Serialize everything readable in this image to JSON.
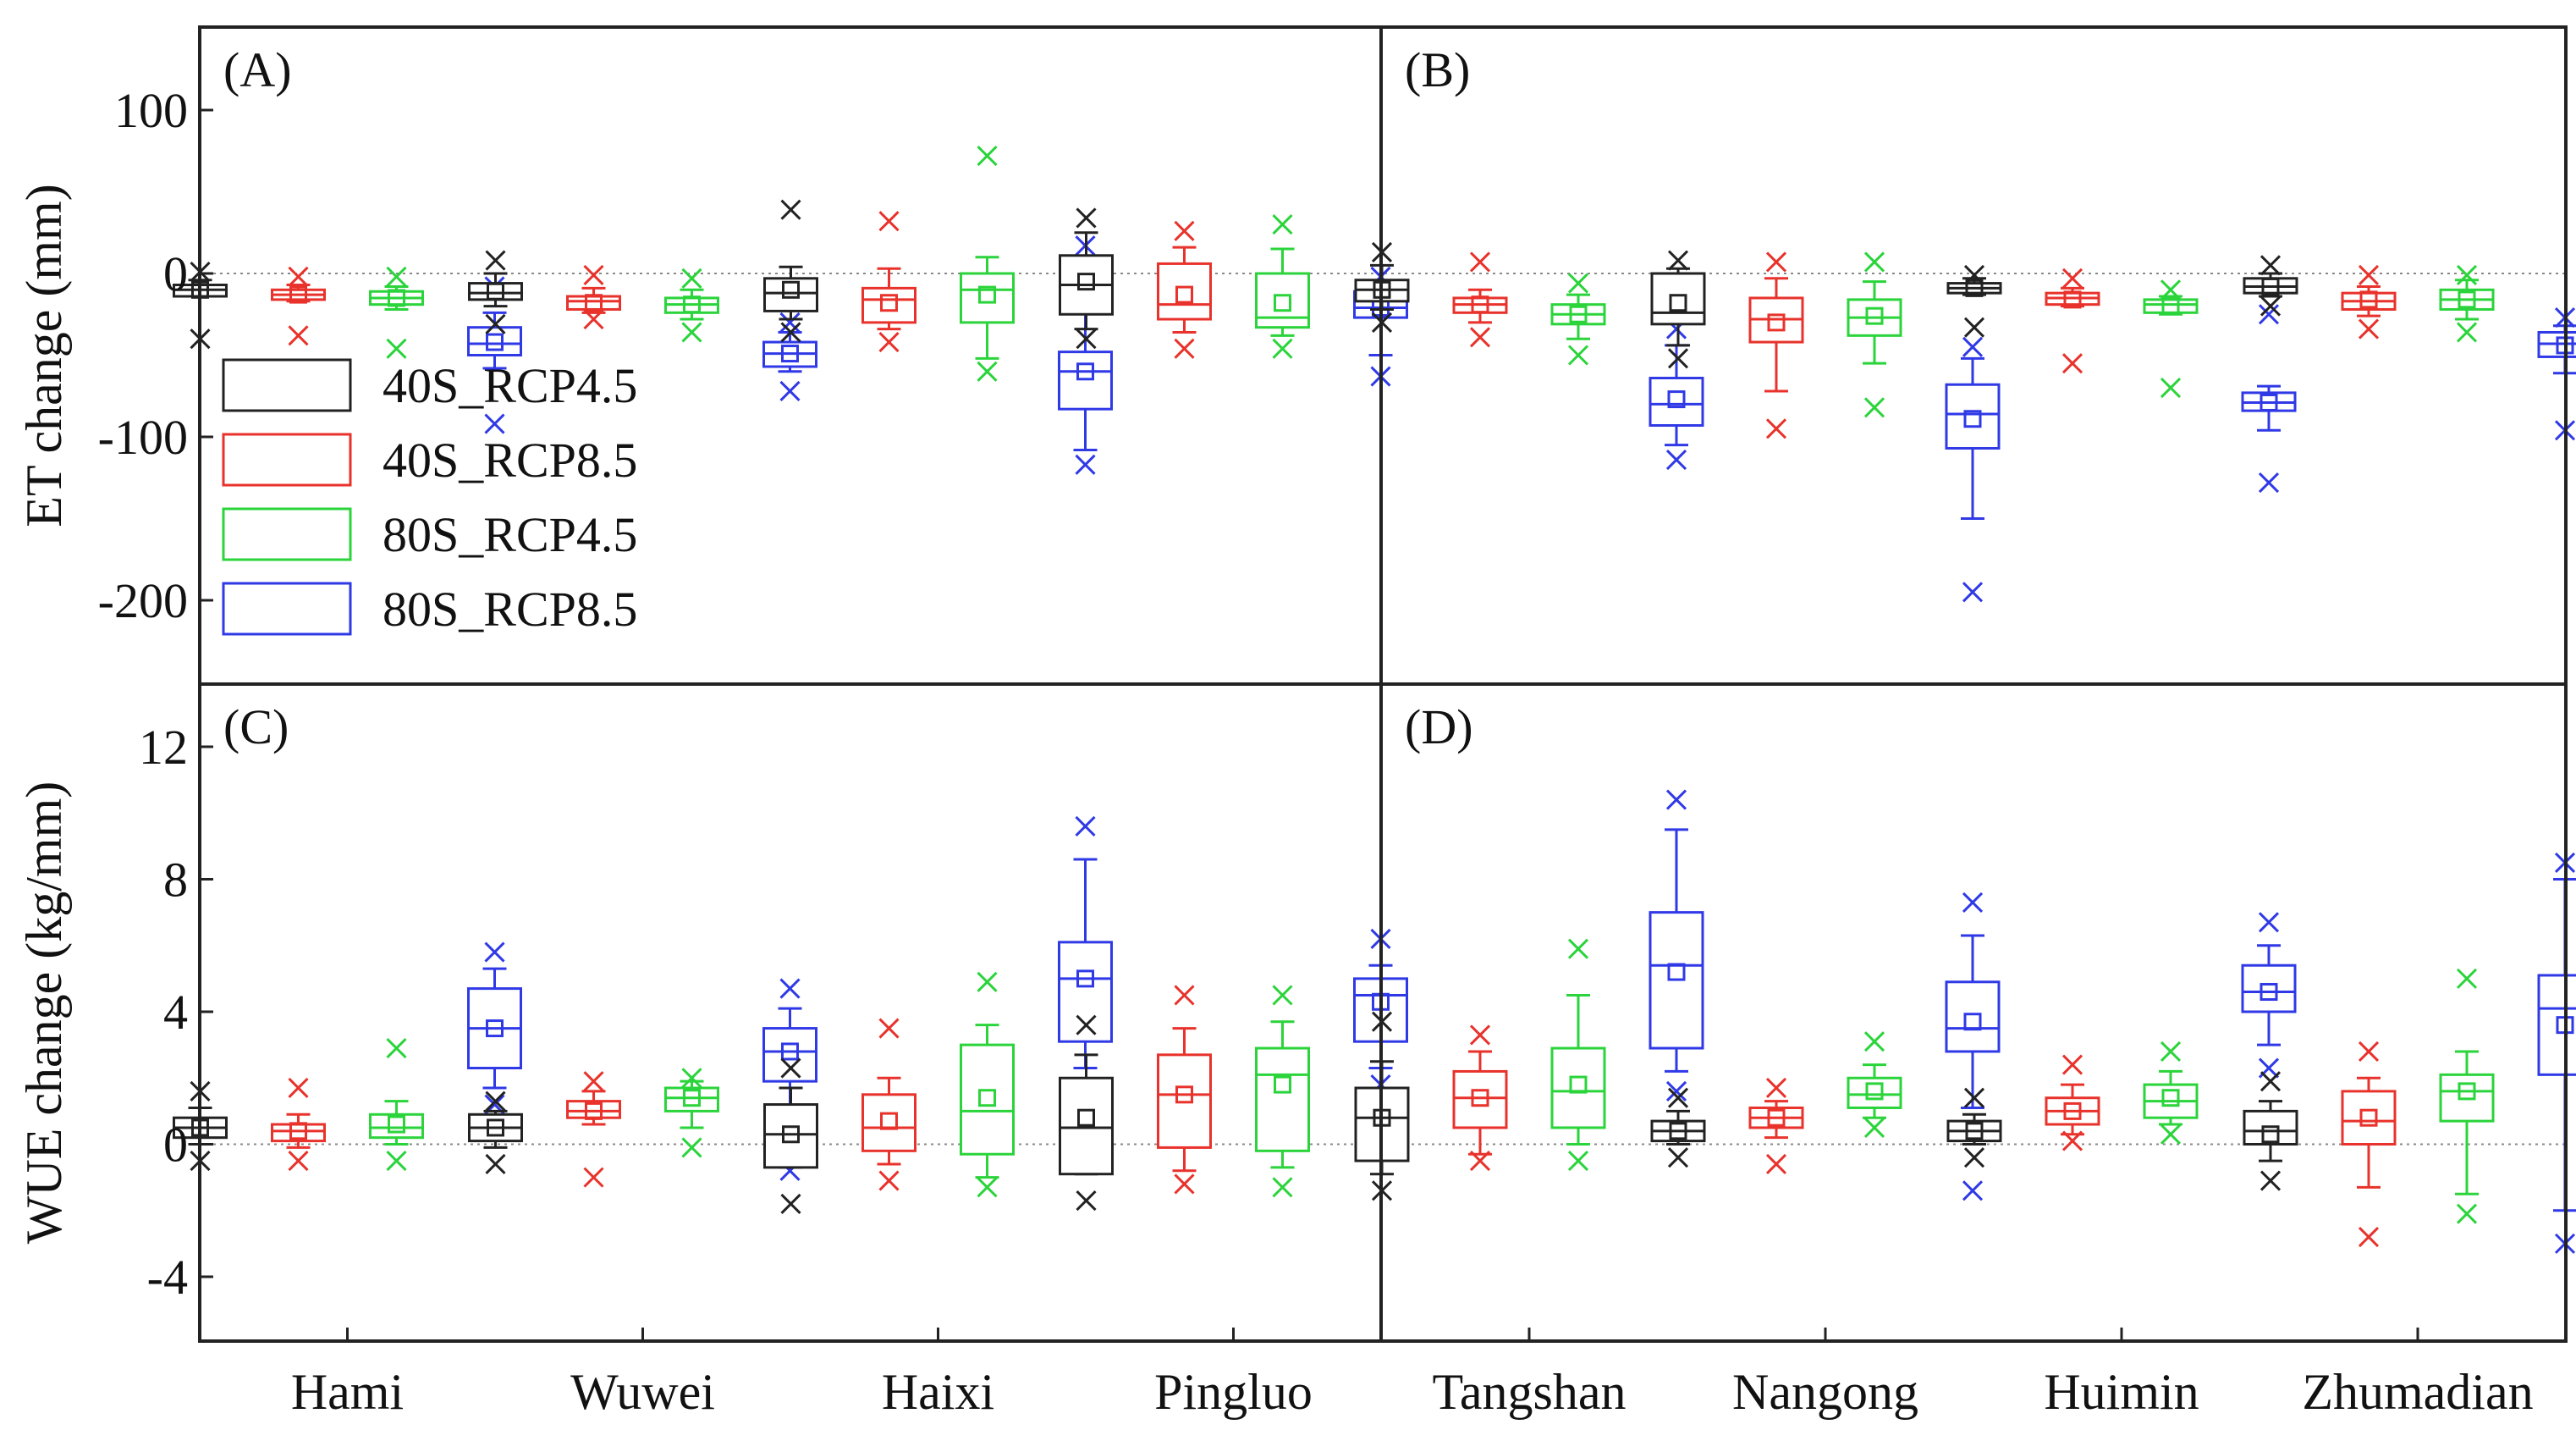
{
  "chart_data": {
    "type": "boxplot",
    "legend": {
      "position": "inside-left of panel A",
      "entries": [
        {
          "name": "40S_RCP4.5",
          "color": "#222222"
        },
        {
          "name": "40S_RCP8.5",
          "color": "#e8322b"
        },
        {
          "name": "80S_RCP4.5",
          "color": "#2ad43a"
        },
        {
          "name": "80S_RCP8.5",
          "color": "#2f39e6"
        }
      ]
    },
    "rows": [
      {
        "ylabel": "ET change (mm)",
        "ylim": [
          -250,
          150
        ],
        "ticks": [
          100,
          0,
          -100,
          -200
        ]
      },
      {
        "ylabel": "WUE change (kg/mm)",
        "ylim": [
          -6,
          14
        ],
        "ticks": [
          12,
          8,
          4,
          0,
          -4
        ]
      }
    ],
    "panels": [
      {
        "label": "(A)",
        "row": 0,
        "col": 0,
        "categories": [
          "Hami",
          "Wuwei",
          "Haixi",
          "Pingluo"
        ],
        "boxes": [
          [
            {
              "min": -14,
              "q1": -14,
              "med": -10,
              "q3": -7,
              "max": -4,
              "mean": -10,
              "o_lo": -40,
              "o_hi": 1
            },
            {
              "min": -17,
              "q1": -16,
              "med": -13,
              "q3": -10,
              "max": -7,
              "mean": -13,
              "o_lo": -38,
              "o_hi": -2
            },
            {
              "min": -22,
              "q1": -19,
              "med": -15,
              "q3": -11,
              "max": -8,
              "mean": -15,
              "o_lo": -46,
              "o_hi": -2
            },
            {
              "min": -58,
              "q1": -50,
              "med": -43,
              "q3": -33,
              "max": -24,
              "mean": -42,
              "o_lo": -92,
              "o_hi": -8
            }
          ],
          [
            {
              "min": -20,
              "q1": -16,
              "med": -12,
              "q3": -6,
              "max": 0,
              "mean": -11,
              "o_lo": -31,
              "o_hi": 8
            },
            {
              "min": -24,
              "q1": -22,
              "med": -17,
              "q3": -14,
              "max": -9,
              "mean": -18,
              "o_lo": -28,
              "o_hi": -1
            },
            {
              "min": -28,
              "q1": -24,
              "med": -19,
              "q3": -15,
              "max": -10,
              "mean": -19,
              "o_lo": -36,
              "o_hi": -3
            },
            {
              "min": -60,
              "q1": -57,
              "med": -49,
              "q3": -42,
              "max": -36,
              "mean": -49,
              "o_lo": -72,
              "o_hi": -30
            }
          ],
          [
            {
              "min": -28,
              "q1": -23,
              "med": -12,
              "q3": -3,
              "max": 4,
              "mean": -10,
              "o_lo": -36,
              "o_hi": 39
            },
            {
              "min": -34,
              "q1": -30,
              "med": -16,
              "q3": -9,
              "max": 3,
              "mean": -18,
              "o_lo": -42,
              "o_hi": 32
            },
            {
              "min": -52,
              "q1": -30,
              "med": -10,
              "q3": 0,
              "max": 10,
              "mean": -13,
              "o_lo": -60,
              "o_hi": 72
            },
            {
              "min": -108,
              "q1": -83,
              "med": -60,
              "q3": -48,
              "max": -5,
              "mean": -60,
              "o_lo": -117,
              "o_hi": 17
            }
          ],
          [
            {
              "min": -34,
              "q1": -25,
              "med": -7,
              "q3": 11,
              "max": 25,
              "mean": -5,
              "o_lo": -40,
              "o_hi": 34
            },
            {
              "min": -36,
              "q1": -28,
              "med": -19,
              "q3": 6,
              "max": 16,
              "mean": -13,
              "o_lo": -46,
              "o_hi": 26
            },
            {
              "min": -38,
              "q1": -33,
              "med": -27,
              "q3": 0,
              "max": 15,
              "mean": -18,
              "o_lo": -46,
              "o_hi": 30
            },
            {
              "min": -50,
              "q1": -27,
              "med": -21,
              "q3": -11,
              "max": -5,
              "mean": -21,
              "o_lo": -63,
              "o_hi": -2
            }
          ]
        ]
      },
      {
        "label": "(B)",
        "row": 0,
        "col": 1,
        "categories": [
          "Tangshan",
          "Nangong",
          "Huimin",
          "Zhumadian"
        ],
        "boxes": [
          [
            {
              "min": -22,
              "q1": -17,
              "med": -10,
              "q3": -4,
              "max": 5,
              "mean": -10,
              "o_lo": -30,
              "o_hi": 13
            },
            {
              "min": -30,
              "q1": -24,
              "med": -19,
              "q3": -15,
              "max": -10,
              "mean": -19,
              "o_lo": -39,
              "o_hi": 7
            },
            {
              "min": -40,
              "q1": -31,
              "med": -25,
              "q3": -19,
              "max": -13,
              "mean": -25,
              "o_lo": -50,
              "o_hi": -6
            },
            {
              "min": -105,
              "q1": -93,
              "med": -80,
              "q3": -64,
              "max": -44,
              "mean": -77,
              "o_lo": -114,
              "o_hi": -34
            }
          ],
          [
            {
              "min": -44,
              "q1": -31,
              "med": -24,
              "q3": 0,
              "max": 3,
              "mean": -18,
              "o_lo": -52,
              "o_hi": 8
            },
            {
              "min": -72,
              "q1": -42,
              "med": -28,
              "q3": -15,
              "max": -3,
              "mean": -30,
              "o_lo": -95,
              "o_hi": 7
            },
            {
              "min": -55,
              "q1": -38,
              "med": -27,
              "q3": -16,
              "max": -5,
              "mean": -26,
              "o_lo": -82,
              "o_hi": 7
            },
            {
              "min": -150,
              "q1": -107,
              "med": -86,
              "q3": -68,
              "max": -52,
              "mean": -89,
              "o_lo": -195,
              "o_hi": -45
            }
          ],
          [
            {
              "min": -13,
              "q1": -12,
              "med": -9,
              "q3": -6,
              "max": -3,
              "mean": -9,
              "o_lo": -33,
              "o_hi": -1
            },
            {
              "min": -20,
              "q1": -19,
              "med": -15,
              "q3": -12,
              "max": -9,
              "mean": -16,
              "o_lo": -55,
              "o_hi": -3
            },
            {
              "min": -25,
              "q1": -24,
              "med": -19,
              "q3": -16,
              "max": -14,
              "mean": -20,
              "o_lo": -70,
              "o_hi": -10
            },
            {
              "min": -96,
              "q1": -84,
              "med": -79,
              "q3": -73,
              "max": -69,
              "mean": -79,
              "o_lo": -128,
              "o_hi": -25
            }
          ],
          [
            {
              "min": -14,
              "q1": -12,
              "med": -8,
              "q3": -3,
              "max": 0,
              "mean": -8,
              "o_lo": -20,
              "o_hi": 5
            },
            {
              "min": -26,
              "q1": -22,
              "med": -17,
              "q3": -12,
              "max": -8,
              "mean": -16,
              "o_lo": -34,
              "o_hi": -1
            },
            {
              "min": -28,
              "q1": -22,
              "med": -16,
              "q3": -10,
              "max": -4,
              "mean": -16,
              "o_lo": -36,
              "o_hi": -1
            },
            {
              "min": -61,
              "q1": -51,
              "med": -43,
              "q3": -36,
              "max": -32,
              "mean": -44,
              "o_lo": -96,
              "o_hi": -27
            }
          ]
        ]
      },
      {
        "label": "(C)",
        "row": 1,
        "col": 0,
        "categories": [
          "Hami",
          "Wuwei",
          "Haixi",
          "Pingluo"
        ],
        "boxes": [
          [
            {
              "min": 0.0,
              "q1": 0.2,
              "med": 0.5,
              "q3": 0.8,
              "max": 1.1,
              "mean": 0.5,
              "o_lo": -0.5,
              "o_hi": 1.6
            },
            {
              "min": -0.1,
              "q1": 0.1,
              "med": 0.4,
              "q3": 0.6,
              "max": 0.9,
              "mean": 0.4,
              "o_lo": -0.5,
              "o_hi": 1.7
            },
            {
              "min": 0.0,
              "q1": 0.2,
              "med": 0.5,
              "q3": 0.9,
              "max": 1.3,
              "mean": 0.6,
              "o_lo": -0.5,
              "o_hi": 2.9
            },
            {
              "min": 1.7,
              "q1": 2.3,
              "med": 3.5,
              "q3": 4.7,
              "max": 5.3,
              "mean": 3.5,
              "o_lo": 1.2,
              "o_hi": 5.8
            }
          ],
          [
            {
              "min": -0.1,
              "q1": 0.1,
              "med": 0.5,
              "q3": 0.9,
              "max": 1.0,
              "mean": 0.5,
              "o_lo": -0.6,
              "o_hi": 1.3
            },
            {
              "min": 0.6,
              "q1": 0.8,
              "med": 1.0,
              "q3": 1.3,
              "max": 1.6,
              "mean": 1.0,
              "o_lo": -1.0,
              "o_hi": 1.9
            },
            {
              "min": 0.5,
              "q1": 1.0,
              "med": 1.4,
              "q3": 1.7,
              "max": 1.9,
              "mean": 1.4,
              "o_lo": -0.1,
              "o_hi": 2.0
            },
            {
              "min": 1.0,
              "q1": 1.9,
              "med": 2.8,
              "q3": 3.5,
              "max": 4.1,
              "mean": 2.8,
              "o_lo": -0.8,
              "o_hi": 4.7
            }
          ],
          [
            {
              "min": -0.7,
              "q1": -0.7,
              "med": 0.3,
              "q3": 1.2,
              "max": 1.7,
              "mean": 0.3,
              "o_lo": -1.8,
              "o_hi": 2.3
            },
            {
              "min": -0.6,
              "q1": -0.2,
              "med": 0.5,
              "q3": 1.5,
              "max": 2.0,
              "mean": 0.7,
              "o_lo": -1.1,
              "o_hi": 3.5
            },
            {
              "min": -1.0,
              "q1": -0.3,
              "med": 1.0,
              "q3": 3.0,
              "max": 3.6,
              "mean": 1.4,
              "o_lo": -1.3,
              "o_hi": 4.9
            },
            {
              "min": 2.3,
              "q1": 3.1,
              "med": 5.0,
              "q3": 6.1,
              "max": 8.6,
              "mean": 5.0,
              "o_lo": 1.2,
              "o_hi": 9.6
            }
          ],
          [
            {
              "min": -0.9,
              "q1": -0.9,
              "med": 0.5,
              "q3": 2.0,
              "max": 2.7,
              "mean": 0.8,
              "o_lo": -1.7,
              "o_hi": 3.6
            },
            {
              "min": -0.8,
              "q1": -0.1,
              "med": 1.5,
              "q3": 2.7,
              "max": 3.5,
              "mean": 1.5,
              "o_lo": -1.2,
              "o_hi": 4.5
            },
            {
              "min": -0.7,
              "q1": -0.2,
              "med": 2.1,
              "q3": 2.9,
              "max": 3.7,
              "mean": 1.8,
              "o_lo": -1.3,
              "o_hi": 4.5
            },
            {
              "min": 2.3,
              "q1": 3.1,
              "med": 4.5,
              "q3": 5.0,
              "max": 5.4,
              "mean": 4.3,
              "o_lo": 1.8,
              "o_hi": 6.2
            }
          ]
        ]
      },
      {
        "label": "(D)",
        "row": 1,
        "col": 1,
        "categories": [
          "Tangshan",
          "Nangong",
          "Huimin",
          "Zhumadian"
        ],
        "boxes": [
          [
            {
              "min": -0.9,
              "q1": -0.5,
              "med": 0.8,
              "q3": 1.7,
              "max": 2.5,
              "mean": 0.8,
              "o_lo": -1.4,
              "o_hi": 3.7
            },
            {
              "min": -0.3,
              "q1": 0.5,
              "med": 1.4,
              "q3": 2.2,
              "max": 2.8,
              "mean": 1.4,
              "o_lo": -0.5,
              "o_hi": 3.3
            },
            {
              "min": 0.0,
              "q1": 0.5,
              "med": 1.6,
              "q3": 2.9,
              "max": 4.5,
              "mean": 1.8,
              "o_lo": -0.5,
              "o_hi": 5.9
            },
            {
              "min": 2.2,
              "q1": 2.9,
              "med": 5.4,
              "q3": 7.0,
              "max": 9.5,
              "mean": 5.2,
              "o_lo": 1.6,
              "o_hi": 10.4
            }
          ],
          [
            {
              "min": 0.0,
              "q1": 0.1,
              "med": 0.4,
              "q3": 0.7,
              "max": 1.0,
              "mean": 0.4,
              "o_lo": -0.4,
              "o_hi": 1.4
            },
            {
              "min": 0.2,
              "q1": 0.5,
              "med": 0.8,
              "q3": 1.1,
              "max": 1.3,
              "mean": 0.8,
              "o_lo": -0.6,
              "o_hi": 1.7
            },
            {
              "min": 0.8,
              "q1": 1.1,
              "med": 1.5,
              "q3": 2.0,
              "max": 2.4,
              "mean": 1.6,
              "o_lo": 0.5,
              "o_hi": 3.1
            },
            {
              "min": 1.1,
              "q1": 2.8,
              "med": 3.5,
              "q3": 4.9,
              "max": 6.3,
              "mean": 3.7,
              "o_lo": -1.4,
              "o_hi": 7.3
            }
          ],
          [
            {
              "min": 0.0,
              "q1": 0.1,
              "med": 0.4,
              "q3": 0.7,
              "max": 0.9,
              "mean": 0.4,
              "o_lo": -0.4,
              "o_hi": 1.4
            },
            {
              "min": 0.3,
              "q1": 0.6,
              "med": 1.0,
              "q3": 1.4,
              "max": 1.8,
              "mean": 1.0,
              "o_lo": 0.1,
              "o_hi": 2.4
            },
            {
              "min": 0.6,
              "q1": 0.8,
              "med": 1.3,
              "q3": 1.8,
              "max": 2.2,
              "mean": 1.4,
              "o_lo": 0.3,
              "o_hi": 2.8
            },
            {
              "min": 3.0,
              "q1": 4.0,
              "med": 4.6,
              "q3": 5.4,
              "max": 6.0,
              "mean": 4.6,
              "o_lo": 2.3,
              "o_hi": 6.7
            }
          ],
          [
            {
              "min": -0.5,
              "q1": 0.0,
              "med": 0.4,
              "q3": 1.0,
              "max": 1.3,
              "mean": 0.3,
              "o_lo": -1.1,
              "o_hi": 1.9
            },
            {
              "min": -1.3,
              "q1": 0.0,
              "med": 0.7,
              "q3": 1.6,
              "max": 2.0,
              "mean": 0.8,
              "o_lo": -2.8,
              "o_hi": 2.8
            },
            {
              "min": -1.5,
              "q1": 0.7,
              "med": 1.6,
              "q3": 2.1,
              "max": 2.8,
              "mean": 1.6,
              "o_lo": -2.1,
              "o_hi": 5.0
            },
            {
              "min": -2.0,
              "q1": 2.1,
              "med": 4.1,
              "q3": 5.1,
              "max": 8.0,
              "mean": 3.6,
              "o_lo": -3.0,
              "o_hi": 8.5
            }
          ]
        ]
      }
    ]
  }
}
